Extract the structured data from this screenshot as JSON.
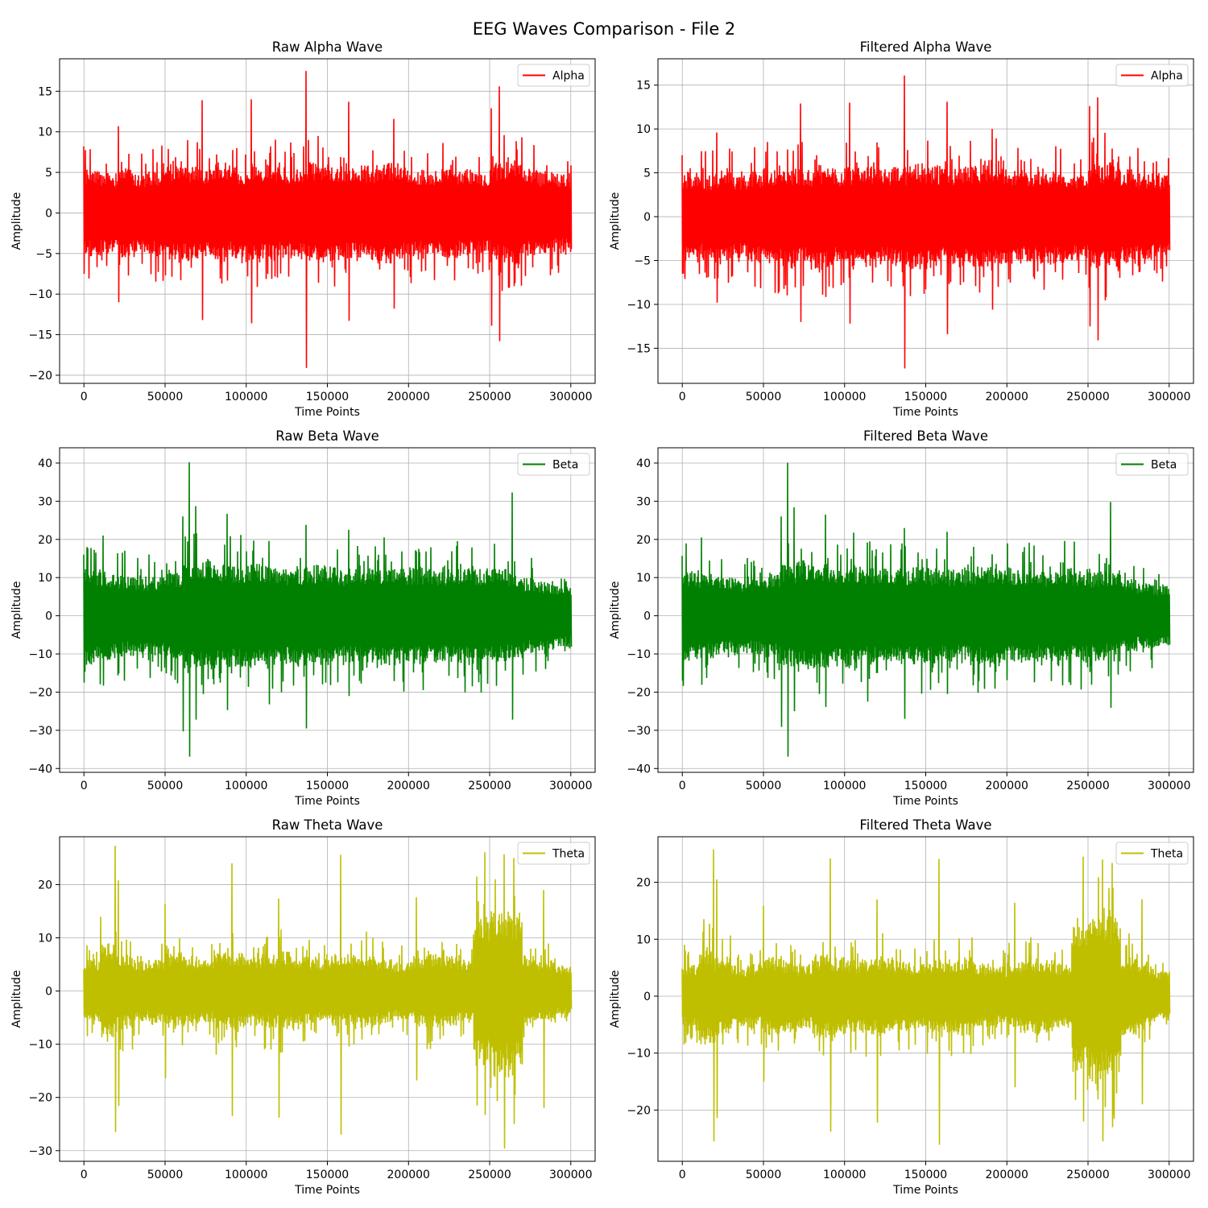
{
  "figure": {
    "title": "EEG Waves Comparison - File 2"
  },
  "chart_data": [
    {
      "type": "line",
      "title": "Raw Alpha Wave",
      "xlabel": "Time Points",
      "ylabel": "Amplitude",
      "xlim": [
        -15000,
        315000
      ],
      "ylim": [
        -21,
        19
      ],
      "xticks": [
        0,
        50000,
        100000,
        150000,
        200000,
        250000,
        300000
      ],
      "yticks": [
        -20,
        -15,
        -10,
        -5,
        0,
        5,
        10,
        15
      ],
      "grid": true,
      "legend": "top-right",
      "series": [
        {
          "name": "Alpha",
          "color": "#ff0000",
          "x_range": [
            0,
            300000
          ],
          "envelope": [
            4.5,
            4.2,
            4.6,
            4.1,
            4.5,
            4.8,
            5.0,
            4.6,
            5.2,
            4.7,
            4.9,
            5.1,
            4.7,
            4.9,
            5.3,
            5.0,
            4.7,
            4.9,
            5.2,
            4.8,
            4.6,
            4.4,
            4.7,
            4.5,
            4.3,
            5.2,
            5.4,
            4.6,
            4.3,
            4.1
          ],
          "spikes": [
            [
              0,
              8.2,
              -7.5
            ],
            [
              21000,
              10.7,
              -11.0
            ],
            [
              73000,
              13.9,
              -13.2
            ],
            [
              103000,
              14.0,
              -13.6
            ],
            [
              137000,
              17.5,
              -19.1
            ],
            [
              163000,
              13.7,
              -13.3
            ],
            [
              191000,
              11.6,
              -11.8
            ],
            [
              251000,
              12.9,
              -13.9
            ],
            [
              256000,
              15.6,
              -15.8
            ]
          ]
        }
      ]
    },
    {
      "type": "line",
      "title": "Filtered Alpha Wave",
      "xlabel": "Time Points",
      "ylabel": "Amplitude",
      "xlim": [
        -15000,
        315000
      ],
      "ylim": [
        -19,
        18
      ],
      "xticks": [
        0,
        50000,
        100000,
        150000,
        200000,
        250000,
        300000
      ],
      "yticks": [
        -15,
        -10,
        -5,
        0,
        5,
        10,
        15
      ],
      "grid": true,
      "legend": "top-right",
      "series": [
        {
          "name": "Alpha",
          "color": "#ff0000",
          "x_range": [
            0,
            300000
          ],
          "envelope": [
            4.3,
            4.0,
            4.4,
            4.0,
            4.4,
            4.7,
            4.8,
            4.5,
            5.0,
            4.6,
            4.8,
            4.9,
            4.6,
            4.8,
            5.1,
            4.9,
            4.6,
            4.8,
            5.0,
            4.7,
            4.5,
            4.3,
            4.6,
            4.4,
            4.2,
            5.0,
            5.2,
            4.5,
            4.2,
            4.0
          ],
          "spikes": [
            [
              0,
              7.0,
              -6.5
            ],
            [
              21000,
              9.6,
              -9.8
            ],
            [
              73000,
              12.9,
              -12.0
            ],
            [
              103000,
              13.0,
              -12.2
            ],
            [
              137000,
              16.1,
              -17.3
            ],
            [
              163000,
              13.1,
              -13.4
            ],
            [
              191000,
              10.0,
              -10.6
            ],
            [
              251000,
              12.6,
              -12.5
            ],
            [
              256000,
              13.6,
              -14.1
            ]
          ]
        }
      ]
    },
    {
      "type": "line",
      "title": "Raw Beta Wave",
      "xlabel": "Time Points",
      "ylabel": "Amplitude",
      "xlim": [
        -15000,
        315000
      ],
      "ylim": [
        -41,
        44
      ],
      "xticks": [
        0,
        50000,
        100000,
        150000,
        200000,
        250000,
        300000
      ],
      "yticks": [
        -40,
        -30,
        -20,
        -10,
        0,
        10,
        20,
        30,
        40
      ],
      "grid": true,
      "legend": "top-right",
      "series": [
        {
          "name": "Beta",
          "color": "#008000",
          "x_range": [
            0,
            300000
          ],
          "envelope": [
            10.5,
            9.8,
            9.0,
            8.6,
            8.9,
            9.5,
            11.5,
            12.5,
            12.0,
            11.4,
            11.8,
            11.0,
            10.6,
            10.9,
            11.2,
            10.8,
            10.4,
            10.6,
            11.0,
            10.8,
            10.7,
            10.4,
            10.2,
            10.9,
            10.6,
            10.2,
            9.6,
            8.4,
            7.6,
            7.2
          ],
          "spikes": [
            [
              0,
              16.0,
              -17.5
            ],
            [
              12000,
              21.0,
              -18.3
            ],
            [
              61000,
              26.0,
              -30.3
            ],
            [
              65000,
              40.2,
              -36.9
            ],
            [
              69000,
              28.7,
              -27.2
            ],
            [
              88000,
              26.7,
              -24.7
            ],
            [
              114000,
              19.6,
              -23.2
            ],
            [
              137000,
              23.8,
              -29.5
            ],
            [
              163000,
              22.5,
              -21.0
            ],
            [
              264000,
              32.3,
              -27.2
            ]
          ]
        }
      ]
    },
    {
      "type": "line",
      "title": "Filtered Beta Wave",
      "xlabel": "Time Points",
      "ylabel": "Amplitude",
      "xlim": [
        -15000,
        315000
      ],
      "ylim": [
        -41,
        44
      ],
      "xticks": [
        0,
        50000,
        100000,
        150000,
        200000,
        250000,
        300000
      ],
      "yticks": [
        -40,
        -30,
        -20,
        -10,
        0,
        10,
        20,
        30,
        40
      ],
      "grid": true,
      "legend": "top-right",
      "series": [
        {
          "name": "Beta",
          "color": "#008000",
          "x_range": [
            0,
            300000
          ],
          "envelope": [
            10.0,
            9.4,
            8.7,
            8.3,
            8.6,
            9.2,
            11.2,
            12.2,
            11.7,
            11.1,
            11.5,
            10.7,
            10.3,
            10.6,
            10.9,
            10.5,
            10.1,
            10.3,
            10.7,
            10.5,
            10.4,
            10.1,
            9.9,
            10.6,
            10.3,
            9.9,
            9.3,
            8.1,
            7.3,
            6.9
          ],
          "spikes": [
            [
              0,
              15.7,
              -17.0
            ],
            [
              12000,
              20.5,
              -18.1
            ],
            [
              61000,
              26.0,
              -29.1
            ],
            [
              65000,
              40.1,
              -36.9
            ],
            [
              69000,
              28.4,
              -25.0
            ],
            [
              88000,
              26.5,
              -23.9
            ],
            [
              114000,
              19.2,
              -22.5
            ],
            [
              137000,
              23.0,
              -27.0
            ],
            [
              163000,
              22.0,
              -20.5
            ],
            [
              264000,
              29.8,
              -24.1
            ]
          ]
        }
      ]
    },
    {
      "type": "line",
      "title": "Raw Theta Wave",
      "xlabel": "Time Points",
      "ylabel": "Amplitude",
      "xlim": [
        -15000,
        315000
      ],
      "ylim": [
        -32,
        29
      ],
      "xticks": [
        0,
        50000,
        100000,
        150000,
        200000,
        250000,
        300000
      ],
      "yticks": [
        -30,
        -20,
        -10,
        0,
        10,
        20
      ],
      "grid": true,
      "legend": "top-right",
      "series": [
        {
          "name": "Theta",
          "color": "#bfbf00",
          "x_range": [
            0,
            300000
          ],
          "envelope": [
            5.0,
            7.5,
            6.0,
            4.8,
            5.0,
            6.0,
            5.5,
            5.0,
            6.4,
            6.0,
            5.5,
            5.8,
            6.2,
            5.4,
            5.0,
            5.6,
            5.8,
            6.0,
            5.0,
            4.6,
            5.2,
            5.8,
            5.5,
            5.0,
            12.0,
            13.5,
            12.5,
            6.0,
            5.0,
            4.0
          ],
          "spikes": [
            [
              2000,
              8.6,
              -8.5
            ],
            [
              19000,
              27.3,
              -26.5
            ],
            [
              21000,
              20.8,
              -21.6
            ],
            [
              50000,
              16.4,
              -16.4
            ],
            [
              91000,
              24.0,
              -23.5
            ],
            [
              120000,
              17.4,
              -23.8
            ],
            [
              158000,
              25.6,
              -27.0
            ],
            [
              205000,
              17.6,
              -16.8
            ],
            [
              247000,
              26.1,
              -23.3
            ],
            [
              259000,
              25.7,
              -29.6
            ],
            [
              265000,
              25.0,
              -25.0
            ],
            [
              283000,
              19.0,
              -22.0
            ]
          ]
        }
      ]
    },
    {
      "type": "line",
      "title": "Filtered Theta Wave",
      "xlabel": "Time Points",
      "ylabel": "Amplitude",
      "xlim": [
        -15000,
        315000
      ],
      "ylim": [
        -29,
        28
      ],
      "xticks": [
        0,
        50000,
        100000,
        150000,
        200000,
        250000,
        300000
      ],
      "yticks": [
        -20,
        -10,
        0,
        10,
        20
      ],
      "grid": true,
      "legend": "top-right",
      "series": [
        {
          "name": "Theta",
          "color": "#bfbf00",
          "x_range": [
            0,
            300000
          ],
          "envelope": [
            4.8,
            7.2,
            5.8,
            4.6,
            4.8,
            5.8,
            5.3,
            4.8,
            6.2,
            5.8,
            5.3,
            5.6,
            6.0,
            5.2,
            4.8,
            5.4,
            5.6,
            5.8,
            4.8,
            4.4,
            5.0,
            5.6,
            5.3,
            4.8,
            11.5,
            13.0,
            12.0,
            5.8,
            4.8,
            3.8
          ],
          "spikes": [
            [
              2000,
              8.0,
              -8.2
            ],
            [
              19000,
              25.8,
              -25.5
            ],
            [
              21000,
              20.5,
              -21.4
            ],
            [
              50000,
              15.9,
              -15.0
            ],
            [
              91000,
              24.2,
              -23.8
            ],
            [
              120000,
              17.0,
              -22.2
            ],
            [
              158000,
              24.1,
              -26.1
            ],
            [
              205000,
              16.4,
              -16.0
            ],
            [
              247000,
              24.5,
              -22.0
            ],
            [
              259000,
              24.0,
              -25.5
            ],
            [
              265000,
              23.4,
              -23.0
            ],
            [
              283000,
              17.0,
              -19.0
            ]
          ]
        }
      ]
    }
  ]
}
